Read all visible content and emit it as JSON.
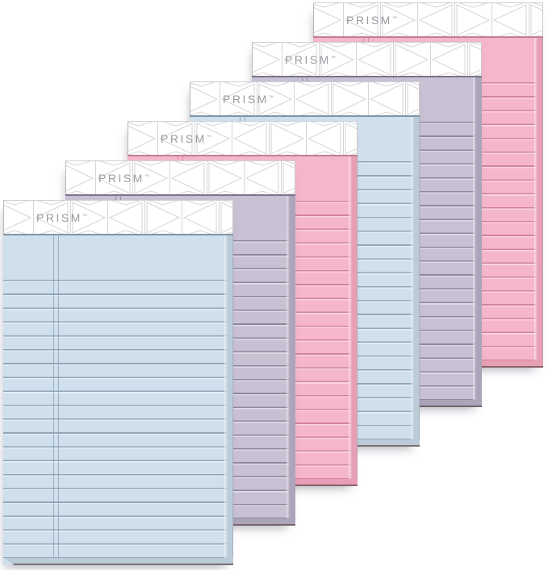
{
  "product": {
    "brand": "PRISM",
    "trademark": "™",
    "description": "Six pastel ruled writing pads fanned in a diagonal stack",
    "pad_count": 6
  },
  "pattern": {
    "name": "triangle-prism-pattern",
    "line_color": "#d5d5d9",
    "header_background": "#ffffff",
    "brand_text_color": "#9b9ba1"
  },
  "pads": [
    {
      "position": "front",
      "color_name": "pastel blue",
      "body": "#cfdfeb",
      "line": "#91a7ba",
      "edge": "#bccbd8",
      "crease": "#8094a6"
    },
    {
      "position": "second",
      "color_name": "pastel orchid",
      "body": "#c8c0d3",
      "line": "#8f879c",
      "edge": "#aca4b9",
      "crease": "#7b7388"
    },
    {
      "position": "third",
      "color_name": "pastel pink",
      "body": "#f6b6ca",
      "line": "#d2849e",
      "edge": "#e79fb5",
      "crease": "#c17d95"
    },
    {
      "position": "fourth",
      "color_name": "pastel blue",
      "body": "#cfdfeb",
      "line": "#91a7ba",
      "edge": "#bccbd8",
      "crease": "#8094a6"
    },
    {
      "position": "fifth",
      "color_name": "pastel orchid",
      "body": "#c8c0d3",
      "line": "#8f879c",
      "edge": "#aca4b9",
      "crease": "#7b7388"
    },
    {
      "position": "back",
      "color_name": "pastel pink",
      "body": "#f6b6ca",
      "line": "#d2849e",
      "edge": "#e79fb5",
      "crease": "#c17d95"
    }
  ]
}
